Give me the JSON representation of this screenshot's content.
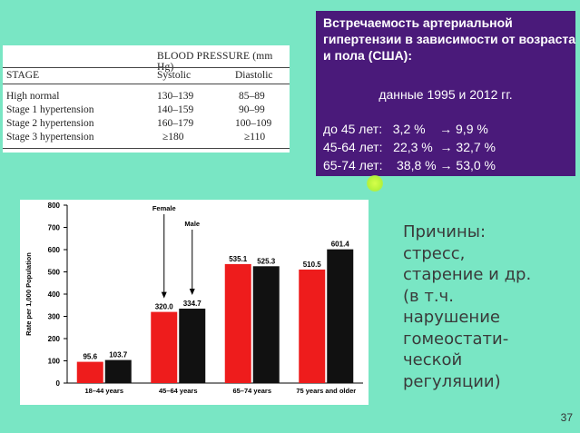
{
  "bp_table": {
    "title": "BLOOD PRESSURE (mm Hg)",
    "columns": [
      "STAGE",
      "Systolic",
      "Diastolic"
    ],
    "rows": [
      {
        "stage": "High normal",
        "systolic": "130–139",
        "diastolic": "85–89"
      },
      {
        "stage": "Stage 1 hypertension",
        "systolic": "140–159",
        "diastolic": "90–99"
      },
      {
        "stage": "Stage 2 hypertension",
        "systolic": "160–179",
        "diastolic": "100–109"
      },
      {
        "stage": "Stage 3 hypertension",
        "systolic": "≥180",
        "diastolic": "≥110"
      }
    ]
  },
  "info_box": {
    "title": "Встречаемость артериальной гипертензии в зависимости от возраста и пола (США):",
    "subtitle": "данные 1995 и 2012 гг.",
    "lines": [
      "до 45 лет:   3,2 %    → 9,9 %",
      "45-64 лет:   22,3 %  → 32,7 %",
      "65-74 лет:    38,8 % → 53,0 %"
    ]
  },
  "chart_data": {
    "type": "bar",
    "categories": [
      "18–44 years",
      "45–64 years",
      "65–74 years",
      "75 years and older"
    ],
    "series": [
      {
        "name": "Female",
        "values": [
          95.6,
          320.0,
          535.1,
          510.5
        ],
        "color": "#ee1c1c"
      },
      {
        "name": "Male",
        "values": [
          103.7,
          334.7,
          525.3,
          601.4
        ],
        "color": "#111111"
      }
    ],
    "value_labels": [
      [
        "95.6",
        "103.7"
      ],
      [
        "320.0",
        "334.7"
      ],
      [
        "535.1",
        "525.3"
      ],
      [
        "510.5",
        "601.4"
      ]
    ],
    "ylabel": "Rate per 1,000 Population",
    "ylim": [
      0,
      800
    ],
    "yticks": [
      "0",
      "100",
      "200",
      "300",
      "400",
      "500",
      "600",
      "700",
      "800"
    ],
    "annotations": [
      "Female",
      "Male"
    ]
  },
  "reasons": {
    "lines": [
      "Причины:",
      "стресс,",
      "старение и др.",
      "(в т.ч.",
      "нарушение",
      "гомеостати-",
      "ческой",
      "регуляции)"
    ]
  },
  "slide_number": "37",
  "colors": {
    "background": "#79e6c4",
    "info_box": "#4a1a7a",
    "female": "#ee1c1c",
    "male": "#111111"
  }
}
